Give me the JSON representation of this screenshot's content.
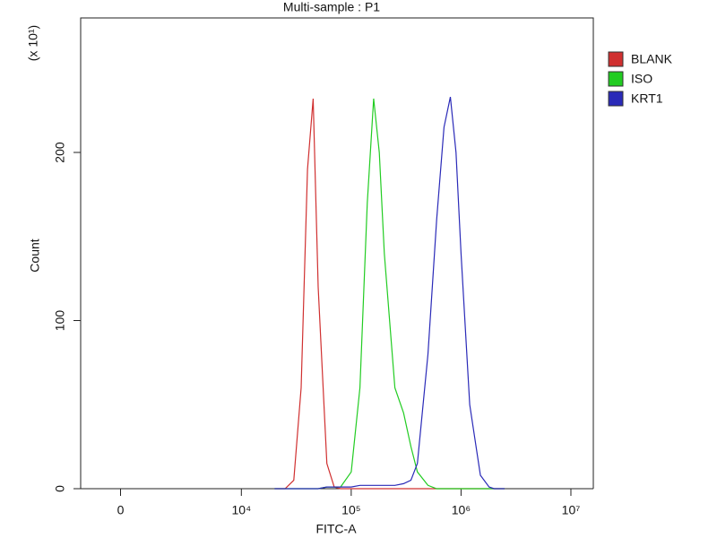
{
  "chart_data": {
    "type": "line",
    "title": "Multi-sample : P1",
    "x_label": "FITC-A",
    "y_label": "Count",
    "y_scale_note": "(x 10¹)",
    "xscale": "symlog",
    "linthresh": 10000,
    "linscale": 1.1,
    "xlim": [
      -3300,
      16000000
    ],
    "xticks": [
      0,
      {
        "value": 10000,
        "label": "10⁴"
      },
      {
        "value": 100000,
        "label": "10⁵"
      },
      {
        "value": 1000000,
        "label": "10⁶"
      },
      {
        "value": 10000000,
        "label": "10⁷"
      }
    ],
    "ylim": [
      0,
      280
    ],
    "yticks": [
      0,
      100,
      200
    ],
    "legend": "right",
    "x": [
      20000,
      25000,
      30000,
      35000,
      40000,
      45000,
      50000,
      60000,
      70000,
      80000,
      100000,
      120000,
      140000,
      160000,
      180000,
      200000,
      250000,
      300000,
      350000,
      400000,
      500000,
      600000,
      700000,
      800000,
      900000,
      1000000,
      1200000,
      1500000,
      1800000,
      2000000,
      2500000
    ],
    "series": [
      {
        "name": "BLANK",
        "color": "#d03030",
        "values": [
          0,
          0,
          5,
          60,
          190,
          232,
          120,
          15,
          1,
          0,
          0,
          0,
          0,
          0,
          0,
          0,
          0,
          0,
          0,
          0,
          0,
          0,
          0,
          0,
          0,
          0,
          0,
          0,
          0,
          0,
          0
        ]
      },
      {
        "name": "ISO",
        "color": "#22cc22",
        "values": [
          0,
          0,
          0,
          0,
          0,
          0,
          0,
          1,
          1,
          1,
          10,
          60,
          170,
          232,
          200,
          140,
          60,
          45,
          25,
          10,
          2,
          0,
          0,
          0,
          0,
          0,
          0,
          0,
          0,
          0,
          0
        ]
      },
      {
        "name": "KRT1",
        "color": "#2a2ab8",
        "values": [
          0,
          0,
          0,
          0,
          0,
          0,
          0,
          1,
          1,
          1,
          1,
          2,
          2,
          2,
          2,
          2,
          2,
          3,
          5,
          15,
          80,
          160,
          215,
          233,
          200,
          140,
          50,
          8,
          1,
          0,
          0
        ]
      }
    ]
  }
}
